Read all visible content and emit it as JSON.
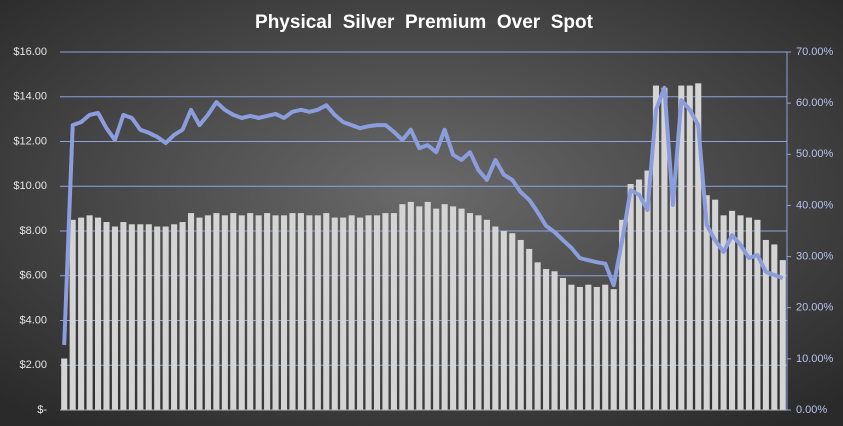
{
  "chart_data": {
    "type": "bar-line",
    "title": "Physical  Silver  Premium  Over  Spot",
    "categories": [
      null,
      null,
      null,
      null,
      null,
      null,
      null,
      null,
      null,
      null,
      null,
      null,
      null,
      null,
      null,
      null,
      null,
      null,
      null,
      null,
      null,
      null,
      null,
      null,
      null,
      null,
      null,
      null,
      null,
      null,
      null,
      null,
      null,
      null,
      null,
      null,
      null,
      null,
      null,
      null,
      null,
      null,
      null,
      null,
      null,
      null,
      null,
      null,
      null,
      null,
      null,
      null,
      null,
      null,
      null,
      null,
      null,
      null,
      null,
      null,
      null,
      null,
      null,
      null,
      null,
      null,
      null,
      null,
      null,
      null,
      null,
      null,
      null,
      null,
      null,
      null,
      null,
      null,
      null,
      null,
      null,
      null,
      null,
      null,
      null,
      null
    ],
    "series": [
      {
        "type": "bar",
        "color": "#d4d4d4",
        "values": [
          2.3,
          8.5,
          8.6,
          8.7,
          8.6,
          8.4,
          8.2,
          8.4,
          8.3,
          8.3,
          8.3,
          8.2,
          8.2,
          8.3,
          8.4,
          8.8,
          8.6,
          8.7,
          8.8,
          8.7,
          8.8,
          8.7,
          8.8,
          8.7,
          8.8,
          8.7,
          8.7,
          8.8,
          8.8,
          8.7,
          8.7,
          8.8,
          8.6,
          8.6,
          8.7,
          8.6,
          8.7,
          8.7,
          8.8,
          8.8,
          9.2,
          9.3,
          9.1,
          9.3,
          9.0,
          9.2,
          9.1,
          9.0,
          8.8,
          8.7,
          8.5,
          8.2,
          8.0,
          7.9,
          7.6,
          7.2,
          6.6,
          6.3,
          6.2,
          5.9,
          5.6,
          5.5,
          5.6,
          5.5,
          5.6,
          5.4,
          8.5,
          10.1,
          10.3,
          10.7,
          14.5,
          14.4,
          10.3,
          14.5,
          14.5,
          14.6,
          9.6,
          9.4,
          8.7,
          8.9,
          8.7,
          8.6,
          8.5,
          7.6,
          7.4,
          6.7
        ]
      },
      {
        "type": "line",
        "axis": "y2",
        "color": "#8b9ddc",
        "values": [
          12.7,
          55.7,
          56.3,
          57.7,
          58.1,
          55.1,
          52.8,
          57.7,
          57.1,
          54.8,
          54.2,
          53.4,
          52.2,
          53.8,
          54.8,
          58.7,
          55.7,
          57.7,
          60.2,
          58.7,
          57.7,
          57.1,
          57.5,
          57.1,
          57.5,
          57.9,
          57.1,
          58.3,
          58.7,
          58.3,
          58.7,
          59.6,
          57.7,
          56.3,
          55.7,
          55.1,
          55.5,
          55.7,
          55.7,
          54.4,
          52.8,
          54.8,
          51.2,
          51.8,
          50.4,
          54.8,
          49.9,
          48.9,
          50.4,
          46.9,
          45.0,
          48.9,
          46.0,
          45.0,
          42.6,
          41.1,
          38.7,
          36.0,
          34.8,
          33.2,
          31.7,
          29.7,
          29.3,
          28.9,
          28.6,
          24.4,
          33.2,
          43.0,
          42.1,
          39.1,
          58.7,
          63.0,
          40.1,
          60.6,
          58.7,
          55.7,
          36.2,
          33.2,
          30.9,
          34.2,
          32.3,
          29.7,
          30.3,
          27.0,
          26.4,
          25.8
        ]
      }
    ],
    "ylim": [
      0,
      16
    ],
    "yticks": [
      {
        "value": 0,
        "label": "$-"
      },
      {
        "value": 2,
        "label": "$2.00"
      },
      {
        "value": 4,
        "label": "$4.00"
      },
      {
        "value": 6,
        "label": "$6.00"
      },
      {
        "value": 8,
        "label": "$8.00"
      },
      {
        "value": 10,
        "label": "$10.00"
      },
      {
        "value": 12,
        "label": "$12.00"
      },
      {
        "value": 14,
        "label": "$14.00"
      },
      {
        "value": 16,
        "label": "$16.00"
      }
    ],
    "y2lim": [
      0,
      70
    ],
    "y2ticks": [
      {
        "value": 0,
        "label": "0.00%"
      },
      {
        "value": 10,
        "label": "10.00%"
      },
      {
        "value": 20,
        "label": "20.00%"
      },
      {
        "value": 30,
        "label": "30.00%"
      },
      {
        "value": 40,
        "label": "40.00%"
      },
      {
        "value": 50,
        "label": "50.00%"
      },
      {
        "value": 60,
        "label": "60.00%"
      },
      {
        "value": 70,
        "label": "70.00%"
      }
    ],
    "grid": true,
    "grid_color": "#8ea3e0"
  }
}
